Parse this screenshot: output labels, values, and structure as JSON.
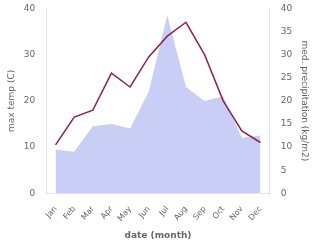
{
  "chart_data": {
    "type": "line",
    "xlabel": "date (month)",
    "ylabel": "max temp (C)",
    "y2label": "med. precipitation (kg/m2)",
    "categories": [
      "Jan",
      "Feb",
      "Mar",
      "Apr",
      "May",
      "Jun",
      "Jul",
      "Aug",
      "Sep",
      "Oct",
      "Nov",
      "Dec"
    ],
    "series": [
      {
        "type": "area",
        "color": "#c8cef5",
        "axis": "y2",
        "values": [
          9.5,
          9.0,
          14.5,
          15.0,
          14.0,
          22.0,
          38.5,
          23.0,
          20.0,
          21.0,
          12.0,
          12.5
        ]
      },
      {
        "type": "line",
        "color": "#8b2252",
        "values": [
          10.5,
          16.5,
          18.0,
          26.0,
          23.0,
          29.5,
          34.0,
          37.0,
          30.0,
          20.0,
          13.5,
          11.0
        ]
      }
    ],
    "ylim": [
      0,
      40
    ],
    "yticks": [
      0,
      10,
      20,
      30,
      40
    ],
    "y2lim": [
      0,
      40
    ],
    "y2ticks": [
      0,
      5,
      10,
      15,
      20,
      25,
      30,
      35,
      40
    ],
    "grid": false
  }
}
